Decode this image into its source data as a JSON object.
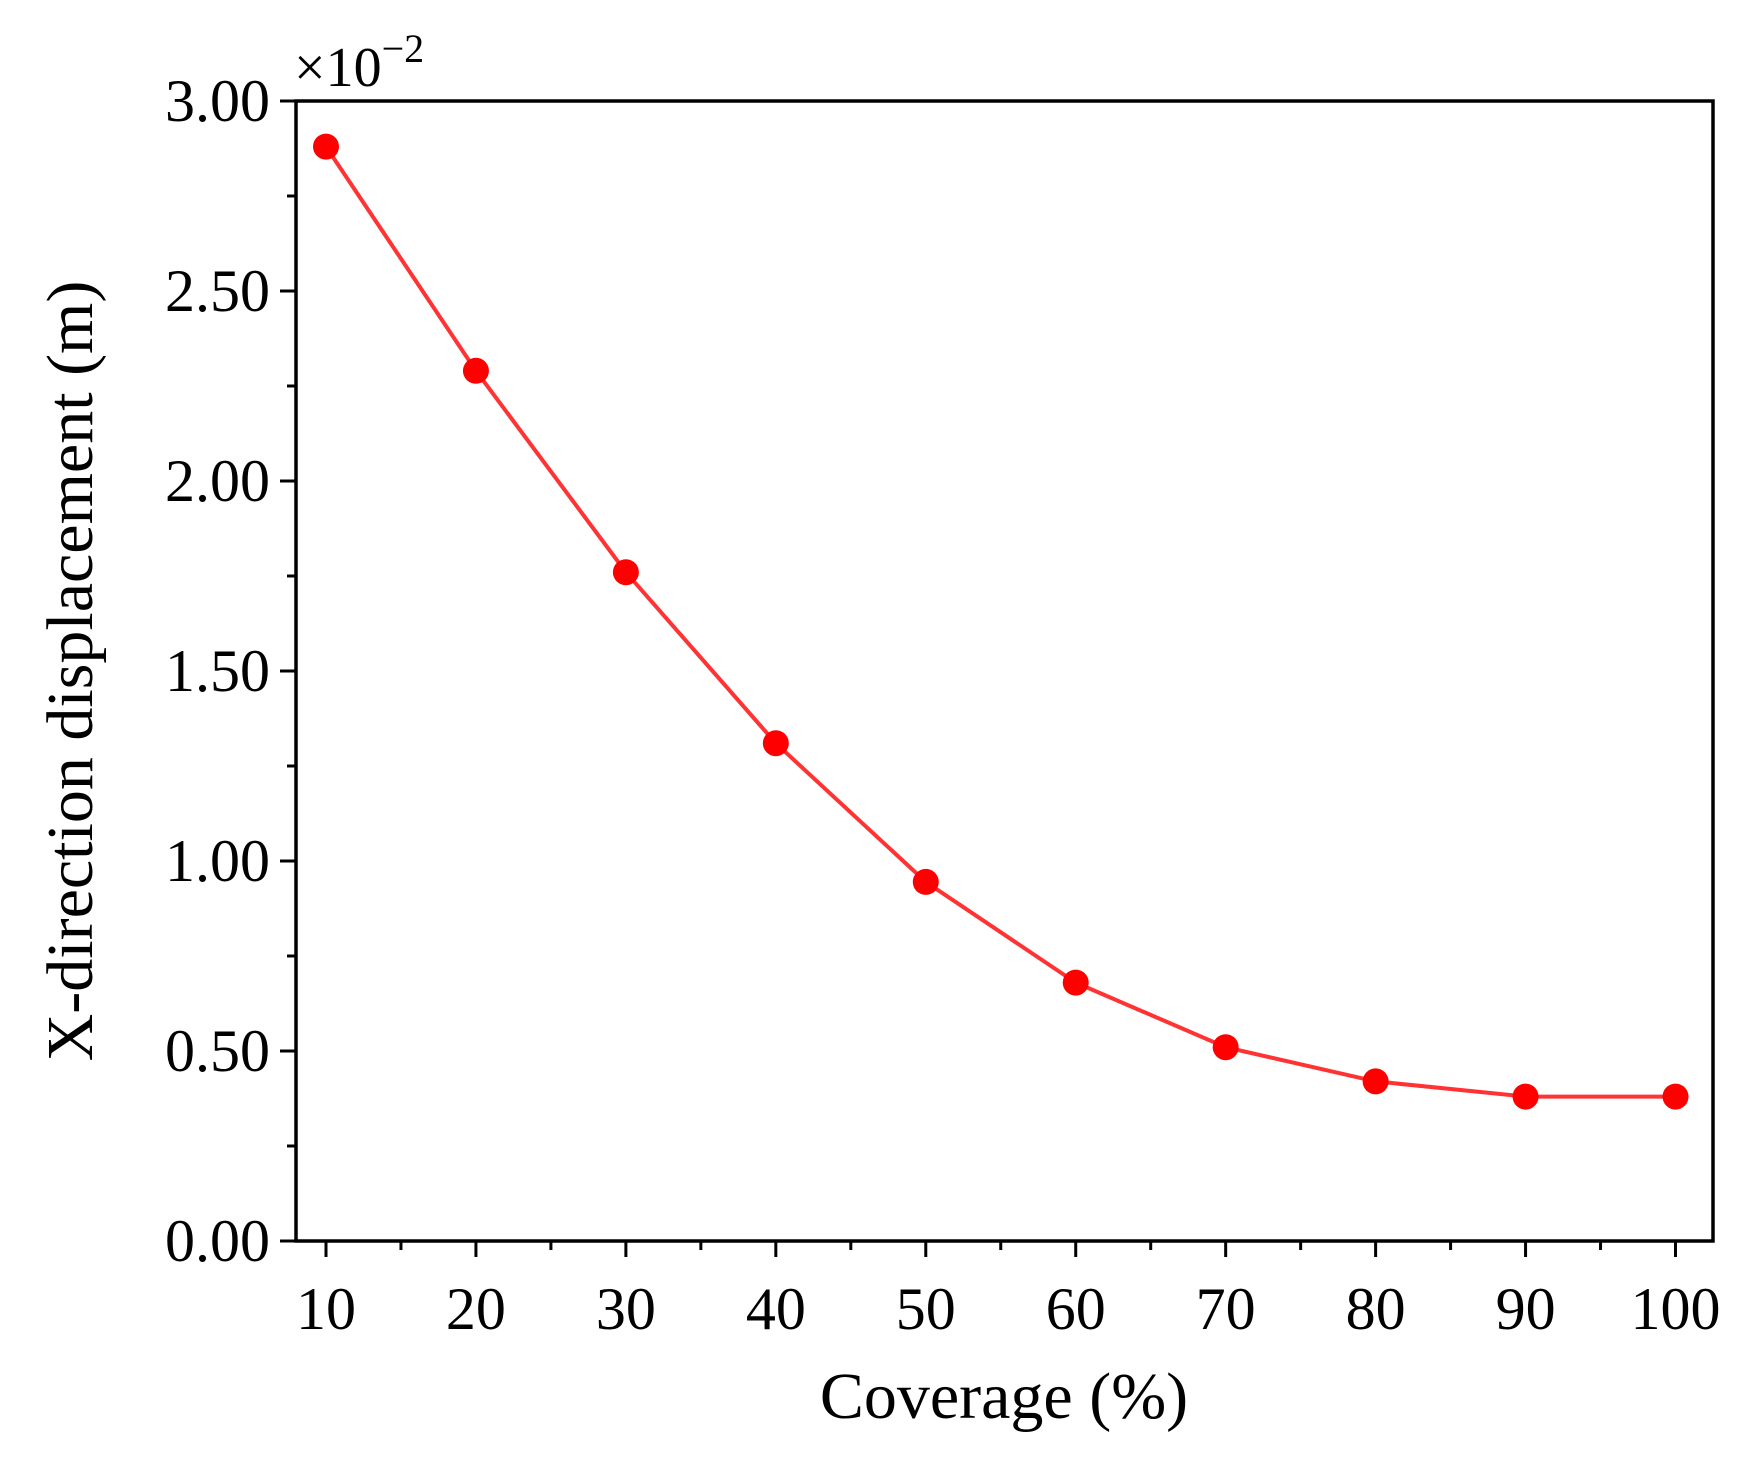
{
  "chart_data": {
    "type": "line",
    "title": "",
    "xlabel": "Coverage (%)",
    "ylabel": "X-direction displacement (m)",
    "y_multiplier": "×10",
    "y_multiplier_exponent": "−2",
    "x": [
      10,
      20,
      30,
      40,
      50,
      60,
      70,
      80,
      90,
      100
    ],
    "series": [
      {
        "values": [
          2.88,
          2.29,
          1.76,
          1.31,
          0.945,
          0.68,
          0.51,
          0.42,
          0.38,
          0.38
        ],
        "color": "#ff3333",
        "marker": "circle",
        "marker_color": "#ff0000"
      }
    ],
    "xlim": [
      8,
      102.5
    ],
    "ylim": [
      0,
      3.0
    ],
    "xticks": [
      "10",
      "20",
      "30",
      "40",
      "50",
      "60",
      "70",
      "80",
      "90",
      "100"
    ],
    "yticks": [
      "0.00",
      "0.50",
      "1.00",
      "1.50",
      "2.00",
      "2.50",
      "3.00"
    ],
    "grid": false,
    "legend": "none"
  }
}
